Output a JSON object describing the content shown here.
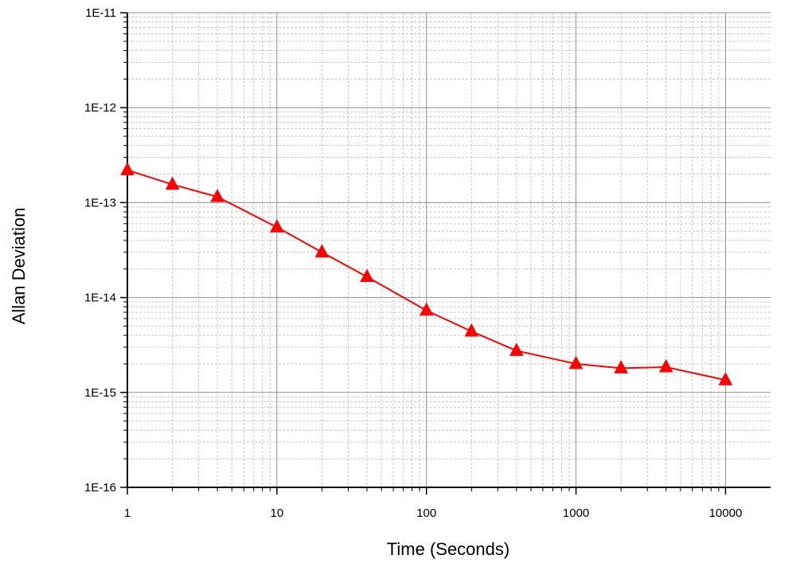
{
  "chart_data": {
    "type": "line",
    "title": "",
    "xlabel": "Time (Seconds)",
    "ylabel": "Allan Deviation",
    "x_scale": "log",
    "y_scale": "log",
    "xlim": [
      1,
      20000
    ],
    "ylim": [
      1e-16,
      1e-11
    ],
    "x_ticks": [
      1,
      10,
      100,
      1000,
      10000
    ],
    "x_tick_labels": [
      "1",
      "10",
      "100",
      "1000",
      "10000"
    ],
    "y_ticks": [
      1e-16,
      1e-15,
      1e-14,
      1e-13,
      1e-12,
      1e-11
    ],
    "y_tick_labels": [
      "1E-16",
      "1E-15",
      "1E-14",
      "1E-13",
      "1E-12",
      "1E-11"
    ],
    "grid": true,
    "legend": "none",
    "colors": {
      "series": "#ff0000",
      "major_grid": "#909090",
      "minor_grid": "#c8c8c8",
      "axis": "#000000"
    },
    "marker": "triangle",
    "series": [
      {
        "x": [
          1,
          2,
          4,
          10,
          20,
          40,
          100,
          200,
          400,
          1000,
          2000,
          4000,
          10000
        ],
        "values": [
          2.2e-13,
          1.55e-13,
          1.15e-13,
          5.5e-14,
          3e-14,
          1.65e-14,
          7.3e-15,
          4.4e-15,
          2.75e-15,
          2e-15,
          1.8e-15,
          1.85e-15,
          1.35e-15
        ]
      }
    ]
  }
}
